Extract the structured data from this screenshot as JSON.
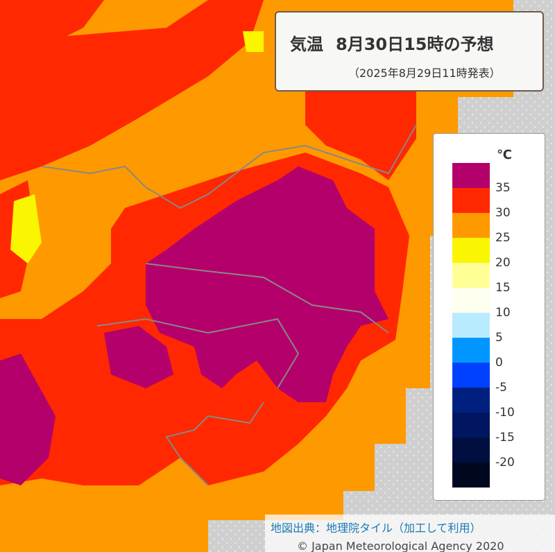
{
  "header": {
    "element": "気温",
    "title": "8月30日15時の予想",
    "issued": "（2025年8月29日11時発表）"
  },
  "legend": {
    "unit": "℃",
    "labels": [
      35,
      30,
      25,
      20,
      15,
      10,
      5,
      0,
      -5,
      -10,
      -15,
      -20
    ],
    "colors": [
      "#b4006a",
      "#ff2800",
      "#ff9900",
      "#faf500",
      "#ffff96",
      "#fffff0",
      "#b9ebff",
      "#0096ff",
      "#0041ff",
      "#002080",
      "#001660",
      "#000e40",
      "#000820"
    ]
  },
  "credit": {
    "map_source": "地図出典：地理院タイル（加工して利用）",
    "copyright": "© Japan Meteorological Agency 2020"
  }
}
